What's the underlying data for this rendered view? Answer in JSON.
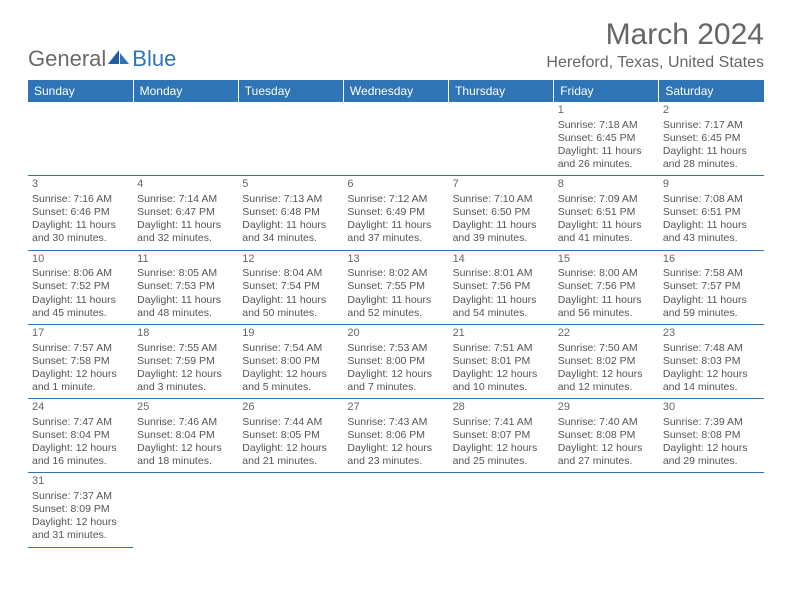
{
  "logo": {
    "part1": "General",
    "part2": "Blue"
  },
  "title": "March 2024",
  "location": "Hereford, Texas, United States",
  "colors": {
    "header_bg": "#2f74b5",
    "header_text": "#ffffff",
    "body_text": "#555555",
    "title_text": "#666666",
    "page_bg": "#ffffff",
    "border": "#2f74b5"
  },
  "fonts": {
    "title_size": 30,
    "location_size": 16,
    "th_size": 12,
    "cell_size": 10.5
  },
  "daysOfWeek": [
    "Sunday",
    "Monday",
    "Tuesday",
    "Wednesday",
    "Thursday",
    "Friday",
    "Saturday"
  ],
  "weeks": [
    [
      null,
      null,
      null,
      null,
      null,
      {
        "n": "1",
        "sr": "Sunrise: 7:18 AM",
        "ss": "Sunset: 6:45 PM",
        "d1": "Daylight: 11 hours",
        "d2": "and 26 minutes."
      },
      {
        "n": "2",
        "sr": "Sunrise: 7:17 AM",
        "ss": "Sunset: 6:45 PM",
        "d1": "Daylight: 11 hours",
        "d2": "and 28 minutes."
      }
    ],
    [
      {
        "n": "3",
        "sr": "Sunrise: 7:16 AM",
        "ss": "Sunset: 6:46 PM",
        "d1": "Daylight: 11 hours",
        "d2": "and 30 minutes."
      },
      {
        "n": "4",
        "sr": "Sunrise: 7:14 AM",
        "ss": "Sunset: 6:47 PM",
        "d1": "Daylight: 11 hours",
        "d2": "and 32 minutes."
      },
      {
        "n": "5",
        "sr": "Sunrise: 7:13 AM",
        "ss": "Sunset: 6:48 PM",
        "d1": "Daylight: 11 hours",
        "d2": "and 34 minutes."
      },
      {
        "n": "6",
        "sr": "Sunrise: 7:12 AM",
        "ss": "Sunset: 6:49 PM",
        "d1": "Daylight: 11 hours",
        "d2": "and 37 minutes."
      },
      {
        "n": "7",
        "sr": "Sunrise: 7:10 AM",
        "ss": "Sunset: 6:50 PM",
        "d1": "Daylight: 11 hours",
        "d2": "and 39 minutes."
      },
      {
        "n": "8",
        "sr": "Sunrise: 7:09 AM",
        "ss": "Sunset: 6:51 PM",
        "d1": "Daylight: 11 hours",
        "d2": "and 41 minutes."
      },
      {
        "n": "9",
        "sr": "Sunrise: 7:08 AM",
        "ss": "Sunset: 6:51 PM",
        "d1": "Daylight: 11 hours",
        "d2": "and 43 minutes."
      }
    ],
    [
      {
        "n": "10",
        "sr": "Sunrise: 8:06 AM",
        "ss": "Sunset: 7:52 PM",
        "d1": "Daylight: 11 hours",
        "d2": "and 45 minutes."
      },
      {
        "n": "11",
        "sr": "Sunrise: 8:05 AM",
        "ss": "Sunset: 7:53 PM",
        "d1": "Daylight: 11 hours",
        "d2": "and 48 minutes."
      },
      {
        "n": "12",
        "sr": "Sunrise: 8:04 AM",
        "ss": "Sunset: 7:54 PM",
        "d1": "Daylight: 11 hours",
        "d2": "and 50 minutes."
      },
      {
        "n": "13",
        "sr": "Sunrise: 8:02 AM",
        "ss": "Sunset: 7:55 PM",
        "d1": "Daylight: 11 hours",
        "d2": "and 52 minutes."
      },
      {
        "n": "14",
        "sr": "Sunrise: 8:01 AM",
        "ss": "Sunset: 7:56 PM",
        "d1": "Daylight: 11 hours",
        "d2": "and 54 minutes."
      },
      {
        "n": "15",
        "sr": "Sunrise: 8:00 AM",
        "ss": "Sunset: 7:56 PM",
        "d1": "Daylight: 11 hours",
        "d2": "and 56 minutes."
      },
      {
        "n": "16",
        "sr": "Sunrise: 7:58 AM",
        "ss": "Sunset: 7:57 PM",
        "d1": "Daylight: 11 hours",
        "d2": "and 59 minutes."
      }
    ],
    [
      {
        "n": "17",
        "sr": "Sunrise: 7:57 AM",
        "ss": "Sunset: 7:58 PM",
        "d1": "Daylight: 12 hours",
        "d2": "and 1 minute."
      },
      {
        "n": "18",
        "sr": "Sunrise: 7:55 AM",
        "ss": "Sunset: 7:59 PM",
        "d1": "Daylight: 12 hours",
        "d2": "and 3 minutes."
      },
      {
        "n": "19",
        "sr": "Sunrise: 7:54 AM",
        "ss": "Sunset: 8:00 PM",
        "d1": "Daylight: 12 hours",
        "d2": "and 5 minutes."
      },
      {
        "n": "20",
        "sr": "Sunrise: 7:53 AM",
        "ss": "Sunset: 8:00 PM",
        "d1": "Daylight: 12 hours",
        "d2": "and 7 minutes."
      },
      {
        "n": "21",
        "sr": "Sunrise: 7:51 AM",
        "ss": "Sunset: 8:01 PM",
        "d1": "Daylight: 12 hours",
        "d2": "and 10 minutes."
      },
      {
        "n": "22",
        "sr": "Sunrise: 7:50 AM",
        "ss": "Sunset: 8:02 PM",
        "d1": "Daylight: 12 hours",
        "d2": "and 12 minutes."
      },
      {
        "n": "23",
        "sr": "Sunrise: 7:48 AM",
        "ss": "Sunset: 8:03 PM",
        "d1": "Daylight: 12 hours",
        "d2": "and 14 minutes."
      }
    ],
    [
      {
        "n": "24",
        "sr": "Sunrise: 7:47 AM",
        "ss": "Sunset: 8:04 PM",
        "d1": "Daylight: 12 hours",
        "d2": "and 16 minutes."
      },
      {
        "n": "25",
        "sr": "Sunrise: 7:46 AM",
        "ss": "Sunset: 8:04 PM",
        "d1": "Daylight: 12 hours",
        "d2": "and 18 minutes."
      },
      {
        "n": "26",
        "sr": "Sunrise: 7:44 AM",
        "ss": "Sunset: 8:05 PM",
        "d1": "Daylight: 12 hours",
        "d2": "and 21 minutes."
      },
      {
        "n": "27",
        "sr": "Sunrise: 7:43 AM",
        "ss": "Sunset: 8:06 PM",
        "d1": "Daylight: 12 hours",
        "d2": "and 23 minutes."
      },
      {
        "n": "28",
        "sr": "Sunrise: 7:41 AM",
        "ss": "Sunset: 8:07 PM",
        "d1": "Daylight: 12 hours",
        "d2": "and 25 minutes."
      },
      {
        "n": "29",
        "sr": "Sunrise: 7:40 AM",
        "ss": "Sunset: 8:08 PM",
        "d1": "Daylight: 12 hours",
        "d2": "and 27 minutes."
      },
      {
        "n": "30",
        "sr": "Sunrise: 7:39 AM",
        "ss": "Sunset: 8:08 PM",
        "d1": "Daylight: 12 hours",
        "d2": "and 29 minutes."
      }
    ],
    [
      {
        "n": "31",
        "sr": "Sunrise: 7:37 AM",
        "ss": "Sunset: 8:09 PM",
        "d1": "Daylight: 12 hours",
        "d2": "and 31 minutes."
      },
      null,
      null,
      null,
      null,
      null,
      null
    ]
  ]
}
